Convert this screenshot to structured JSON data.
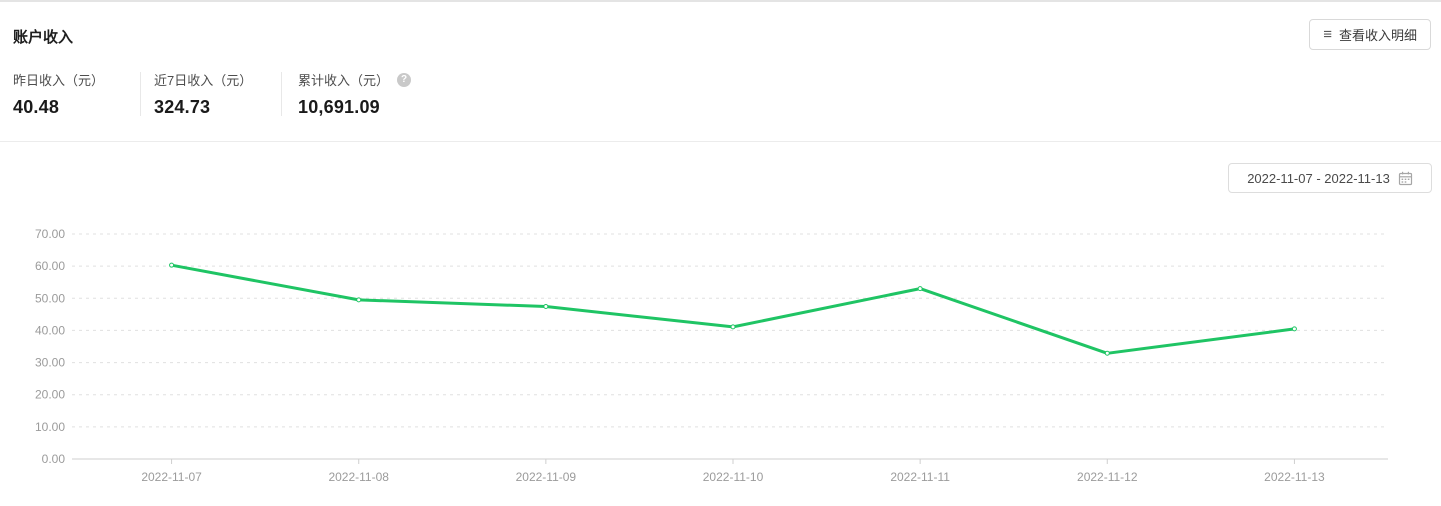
{
  "header": {
    "title": "账户收入",
    "view_details_button": "查看收入明细"
  },
  "icons": {
    "menu_glyph": "≡",
    "help_glyph": "?"
  },
  "stats": [
    {
      "label": "昨日收入（元）",
      "value": "40.48"
    },
    {
      "label": "近7日收入（元）",
      "value": "324.73"
    },
    {
      "label": "累计收入（元）",
      "value": "10,691.09"
    }
  ],
  "date_range": "2022-11-07 - 2022-11-13",
  "chart_data": {
    "type": "line",
    "categories": [
      "2022-11-07",
      "2022-11-08",
      "2022-11-09",
      "2022-11-10",
      "2022-11-11",
      "2022-11-12",
      "2022-11-13"
    ],
    "values": [
      60.3,
      49.5,
      47.45,
      41.1,
      53.0,
      32.9,
      40.48
    ],
    "title": "",
    "xlabel": "",
    "ylabel": "",
    "ylim": [
      0,
      70
    ],
    "ytick_step": 10,
    "ytick_decimals": 2,
    "line_color": "#1fc464",
    "marker": "empty-circle",
    "grid": "dashed-horizontal",
    "grid_color": "#e0e0e0",
    "axis_line_color": "#cfcfcf",
    "legend": "none"
  }
}
